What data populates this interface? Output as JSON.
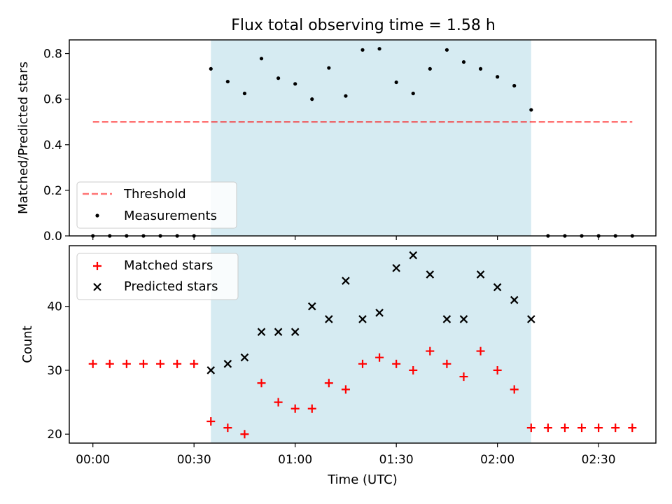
{
  "colors": {
    "shaded_region": "#add8e6",
    "threshold": "#ff0000",
    "measurements": "#000000",
    "matched": "#ff0000",
    "predicted": "#000000"
  },
  "chart_data": [
    {
      "type": "scatter",
      "title": "Flux total observing time = 1.58 h",
      "xlabel": "",
      "ylabel": "Matched/Predicted stars",
      "ylim": [
        0,
        0.86
      ],
      "yticks": [
        0.0,
        0.2,
        0.4,
        0.6,
        0.8
      ],
      "ytick_labels": [
        "0.0",
        "0.2",
        "0.4",
        "0.6",
        "0.8"
      ],
      "x_unit": "minutes after 00:00 UTC",
      "xlim": [
        -7,
        167
      ],
      "shaded_region": [
        35,
        130
      ],
      "legend_position": "lower left",
      "grid": false,
      "threshold": {
        "name": "Threshold",
        "value": 0.5,
        "x_range": [
          0,
          160
        ],
        "style": "dashed"
      },
      "series": [
        {
          "name": "Measurements",
          "marker": "dot",
          "x": [
            0,
            5,
            10,
            15,
            20,
            25,
            30,
            35,
            40,
            45,
            50,
            55,
            60,
            65,
            70,
            75,
            80,
            85,
            90,
            95,
            100,
            105,
            110,
            115,
            120,
            125,
            130,
            135,
            140,
            145,
            150,
            155,
            160
          ],
          "y": [
            0,
            0,
            0,
            0,
            0,
            0,
            0,
            0.733,
            0.677,
            0.625,
            0.778,
            0.692,
            0.667,
            0.6,
            0.737,
            0.614,
            0.816,
            0.821,
            0.674,
            0.625,
            0.733,
            0.816,
            0.763,
            0.733,
            0.698,
            0.659,
            0.553,
            0,
            0,
            0,
            0,
            0,
            0
          ]
        }
      ]
    },
    {
      "type": "scatter",
      "xlabel": "Time (UTC)",
      "ylabel": "Count",
      "ylim": [
        18.6,
        49.5
      ],
      "yticks": [
        20,
        30,
        40
      ],
      "ytick_labels": [
        "20",
        "30",
        "40"
      ],
      "x_unit": "minutes after 00:00 UTC",
      "xlim": [
        -7,
        167
      ],
      "xticks": [
        0,
        30,
        60,
        90,
        120,
        150
      ],
      "xtick_labels": [
        "00:00",
        "00:30",
        "01:00",
        "01:30",
        "02:00",
        "02:30"
      ],
      "shaded_region": [
        35,
        130
      ],
      "legend_position": "upper left",
      "grid": false,
      "series": [
        {
          "name": "Matched stars",
          "marker": "plus",
          "x": [
            0,
            5,
            10,
            15,
            20,
            25,
            30,
            35,
            40,
            45,
            50,
            55,
            60,
            65,
            70,
            75,
            80,
            85,
            90,
            95,
            100,
            105,
            110,
            115,
            120,
            125,
            130,
            135,
            140,
            145,
            150,
            155,
            160
          ],
          "y": [
            31,
            31,
            31,
            31,
            31,
            31,
            31,
            22,
            21,
            20,
            28,
            25,
            24,
            24,
            28,
            27,
            31,
            32,
            31,
            30,
            33,
            31,
            29,
            33,
            30,
            27,
            21,
            21,
            21,
            21,
            21,
            21,
            21
          ]
        },
        {
          "name": "Predicted stars",
          "marker": "x",
          "x": [
            35,
            40,
            45,
            50,
            55,
            60,
            65,
            70,
            75,
            80,
            85,
            90,
            95,
            100,
            105,
            110,
            115,
            120,
            125,
            130
          ],
          "y": [
            30,
            31,
            32,
            36,
            36,
            36,
            40,
            38,
            44,
            38,
            39,
            46,
            48,
            45,
            38,
            38,
            45,
            43,
            41,
            38
          ]
        }
      ]
    }
  ]
}
